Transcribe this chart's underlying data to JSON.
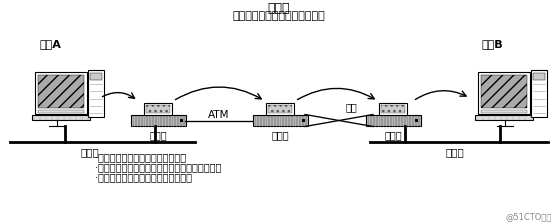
{
  "title_top": "路由器",
  "title_sub": "（根据路由选择发送分组报文）",
  "host_a_label": "主机A",
  "host_b_label": "主机B",
  "router_labels": [
    "路由器",
    "路由器",
    "路由器"
  ],
  "atm_label": "ATM",
  "leased_label": "专线",
  "ethernet_left": "以太网",
  "ethernet_right": "以太网",
  "bullet1": "·路由器是连接网络与网络的设备。",
  "bullet2": "·可以将分组报文发送给另一个目标路由器地址。",
  "bullet3": "·基本上可以连接任意两个数据链路。",
  "watermark": "@51CTO博客",
  "bg_color": "#ffffff",
  "fg_color": "#000000",
  "fig_width": 5.58,
  "fig_height": 2.24,
  "dpi": 100
}
